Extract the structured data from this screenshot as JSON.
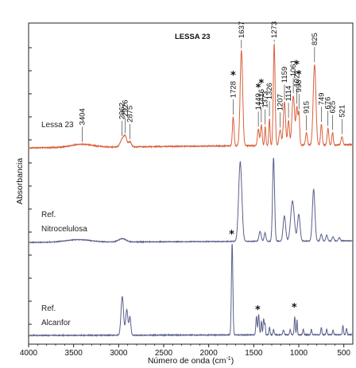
{
  "chart_data": {
    "type": "line",
    "title": "LESSA 23",
    "xlabel": "Número de onda (cm",
    "xlabel_sup": "-1",
    "xlabel_end": ")",
    "ylabel": "Absorbancia",
    "xlim": [
      4000,
      400
    ],
    "x_ticks": [
      4000,
      3500,
      3000,
      2500,
      2000,
      1500,
      1000,
      500
    ],
    "grid": false,
    "series": [
      {
        "label_lines": [
          "Lessa 23"
        ],
        "color": "#d9603b",
        "peaks": [
          {
            "x": 3404,
            "h": 0.03,
            "w": 120
          },
          {
            "x": 2962,
            "h": 0.07,
            "w": 22
          },
          {
            "x": 2926,
            "h": 0.09,
            "w": 18
          },
          {
            "x": 2875,
            "h": 0.05,
            "w": 15
          },
          {
            "x": 1728,
            "h": 0.28,
            "w": 9
          },
          {
            "x": 1637,
            "h": 0.92,
            "w": 14
          },
          {
            "x": 1449,
            "h": 0.16,
            "w": 10
          },
          {
            "x": 1416,
            "h": 0.2,
            "w": 9
          },
          {
            "x": 1373,
            "h": 0.18,
            "w": 7
          },
          {
            "x": 1326,
            "h": 0.26,
            "w": 7
          },
          {
            "x": 1273,
            "h": 0.98,
            "w": 10
          },
          {
            "x": 1207,
            "h": 0.15,
            "w": 12
          },
          {
            "x": 1159,
            "h": 0.42,
            "w": 12
          },
          {
            "x": 1114,
            "h": 0.24,
            "w": 10
          },
          {
            "x": 1061,
            "h": 0.48,
            "w": 15
          },
          {
            "x": 1021,
            "h": 0.36,
            "w": 10
          },
          {
            "x": 998,
            "h": 0.3,
            "w": 8
          },
          {
            "x": 915,
            "h": 0.12,
            "w": 10
          },
          {
            "x": 825,
            "h": 0.78,
            "w": 15
          },
          {
            "x": 749,
            "h": 0.2,
            "w": 9
          },
          {
            "x": 676,
            "h": 0.16,
            "w": 9
          },
          {
            "x": 625,
            "h": 0.12,
            "w": 8
          },
          {
            "x": 521,
            "h": 0.08,
            "w": 10
          }
        ],
        "peak_labels": [
          {
            "x": 3404,
            "text": "3404",
            "star": false
          },
          {
            "x": 2962,
            "text": "2962",
            "star": false
          },
          {
            "x": 2926,
            "text": "2926",
            "star": false
          },
          {
            "x": 2875,
            "text": "2875",
            "star": false
          },
          {
            "x": 1728,
            "text": "1728",
            "star": true
          },
          {
            "x": 1637,
            "text": "1637",
            "star": false
          },
          {
            "x": 1449,
            "text": "1449",
            "star": true
          },
          {
            "x": 1416,
            "text": "1416",
            "star": true
          },
          {
            "x": 1373,
            "text": "1373",
            "star": false
          },
          {
            "x": 1326,
            "text": "1326",
            "star": false
          },
          {
            "x": 1273,
            "text": "1273",
            "star": false
          },
          {
            "x": 1207,
            "text": "1207",
            "star": false
          },
          {
            "x": 1159,
            "text": "1159",
            "star": false
          },
          {
            "x": 1114,
            "text": "1114",
            "star": false
          },
          {
            "x": 1061,
            "text": "1061",
            "star": false
          },
          {
            "x": 1021,
            "text": "1021",
            "star": true
          },
          {
            "x": 998,
            "text": "998",
            "star": true
          },
          {
            "x": 915,
            "text": "915",
            "star": false
          },
          {
            "x": 825,
            "text": "825",
            "star": false
          },
          {
            "x": 749,
            "text": "749",
            "star": false
          },
          {
            "x": 676,
            "text": "676",
            "star": false
          },
          {
            "x": 625,
            "text": "625",
            "star": false
          },
          {
            "x": 521,
            "text": "521",
            "star": false
          }
        ]
      },
      {
        "label_lines": [
          "Ref.",
          "Nitrocelulosa"
        ],
        "color": "#5a5f8c",
        "peaks": [
          {
            "x": 3450,
            "h": 0.03,
            "w": 140
          },
          {
            "x": 2960,
            "h": 0.04,
            "w": 40
          },
          {
            "x": 1650,
            "h": 0.95,
            "w": 18
          },
          {
            "x": 1430,
            "h": 0.12,
            "w": 12
          },
          {
            "x": 1375,
            "h": 0.1,
            "w": 10
          },
          {
            "x": 1280,
            "h": 1.0,
            "w": 11
          },
          {
            "x": 1160,
            "h": 0.3,
            "w": 14
          },
          {
            "x": 1070,
            "h": 0.48,
            "w": 20
          },
          {
            "x": 1000,
            "h": 0.32,
            "w": 14
          },
          {
            "x": 835,
            "h": 0.62,
            "w": 14
          },
          {
            "x": 750,
            "h": 0.08,
            "w": 10
          },
          {
            "x": 690,
            "h": 0.07,
            "w": 10
          },
          {
            "x": 620,
            "h": 0.05,
            "w": 10
          },
          {
            "x": 550,
            "h": 0.04,
            "w": 10
          }
        ]
      },
      {
        "label_lines": [
          "Ref.",
          "Alcanfor"
        ],
        "color": "#5a5f8c",
        "peaks": [
          {
            "x": 2960,
            "h": 0.42,
            "w": 14
          },
          {
            "x": 2910,
            "h": 0.28,
            "w": 12
          },
          {
            "x": 2875,
            "h": 0.2,
            "w": 10
          },
          {
            "x": 1740,
            "h": 1.0,
            "w": 8
          },
          {
            "x": 1470,
            "h": 0.2,
            "w": 7
          },
          {
            "x": 1445,
            "h": 0.22,
            "w": 7
          },
          {
            "x": 1415,
            "h": 0.15,
            "w": 6
          },
          {
            "x": 1390,
            "h": 0.18,
            "w": 6
          },
          {
            "x": 1375,
            "h": 0.12,
            "w": 5
          },
          {
            "x": 1325,
            "h": 0.08,
            "w": 6
          },
          {
            "x": 1280,
            "h": 0.06,
            "w": 6
          },
          {
            "x": 1170,
            "h": 0.05,
            "w": 8
          },
          {
            "x": 1095,
            "h": 0.06,
            "w": 6
          },
          {
            "x": 1045,
            "h": 0.2,
            "w": 6
          },
          {
            "x": 1020,
            "h": 0.16,
            "w": 5
          },
          {
            "x": 950,
            "h": 0.06,
            "w": 6
          },
          {
            "x": 860,
            "h": 0.06,
            "w": 6
          },
          {
            "x": 750,
            "h": 0.08,
            "w": 6
          },
          {
            "x": 690,
            "h": 0.06,
            "w": 6
          },
          {
            "x": 620,
            "h": 0.05,
            "w": 6
          },
          {
            "x": 510,
            "h": 0.1,
            "w": 6
          },
          {
            "x": 470,
            "h": 0.07,
            "w": 6
          }
        ],
        "stars": [
          1740,
          1450,
          1045
        ]
      }
    ]
  }
}
